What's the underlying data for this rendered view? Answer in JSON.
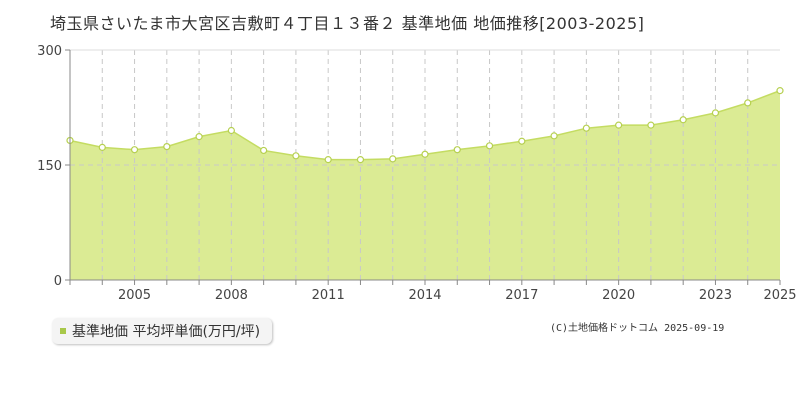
{
  "title": "埼玉県さいたま市大宮区吉敷町４丁目１３番２ 基準地価 地価推移[2003-2025]",
  "legend_label": "基準地価 平均坪単価(万円/坪)",
  "copyright": "(C)土地価格ドットコム 2025-09-19",
  "colors": {
    "fill": "#dbeb94",
    "line": "#c4dc62",
    "marker_fill": "#ffffff",
    "marker_stroke": "#b6d050",
    "grid": "#c8c8c8",
    "axis": "#888888",
    "legend_swatch": "#a8c84a"
  },
  "chart_data": {
    "type": "area",
    "x": [
      2003,
      2004,
      2005,
      2006,
      2007,
      2008,
      2009,
      2010,
      2011,
      2012,
      2013,
      2014,
      2015,
      2016,
      2017,
      2018,
      2019,
      2020,
      2021,
      2022,
      2023,
      2024,
      2025
    ],
    "values": [
      182,
      173,
      170,
      174,
      187,
      195,
      169,
      162,
      157,
      157,
      158,
      164,
      170,
      175,
      181,
      188,
      198,
      202,
      202,
      209,
      218,
      231,
      247
    ],
    "ylim": [
      0,
      300
    ],
    "yticks": [
      0,
      150,
      300
    ],
    "xtick_labels": [
      2005,
      2008,
      2011,
      2014,
      2017,
      2020,
      2023,
      2025
    ],
    "xlim": [
      2003,
      2025
    ],
    "grid": true,
    "legend_position": "bottom-left"
  }
}
